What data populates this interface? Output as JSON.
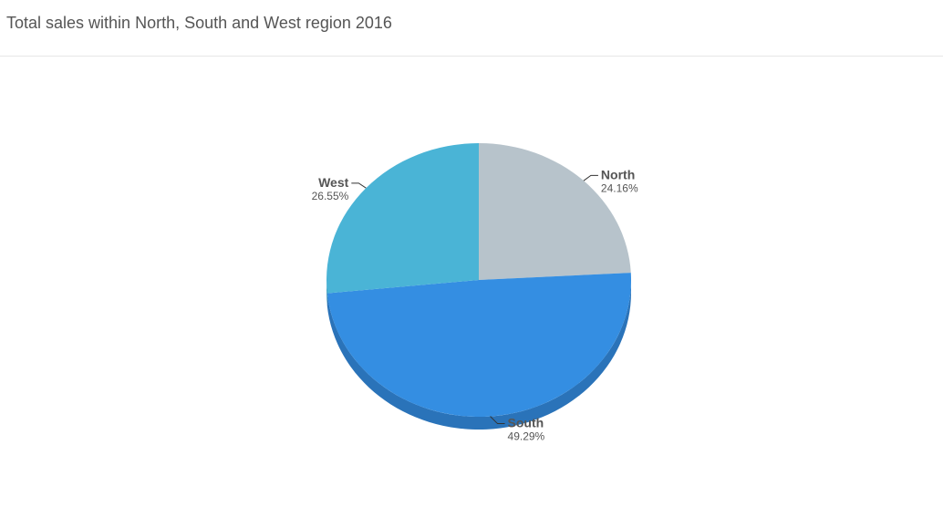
{
  "title": "Total sales within North, South and West region 2016",
  "chart_data": {
    "type": "pie",
    "title": "Total sales within North, South and West region 2016",
    "categories": [
      "North",
      "South",
      "West"
    ],
    "values": [
      24.16,
      49.29,
      26.55
    ],
    "value_labels": [
      "24.16%",
      "49.29%",
      "26.55%"
    ],
    "colors": [
      "#b7c3cb",
      "#348ee2",
      "#4ab4d6"
    ],
    "depth_colors": [
      "#9aa6ae",
      "#2a73b9",
      "#3a95b3"
    ],
    "style": "3d",
    "legend": "none"
  }
}
